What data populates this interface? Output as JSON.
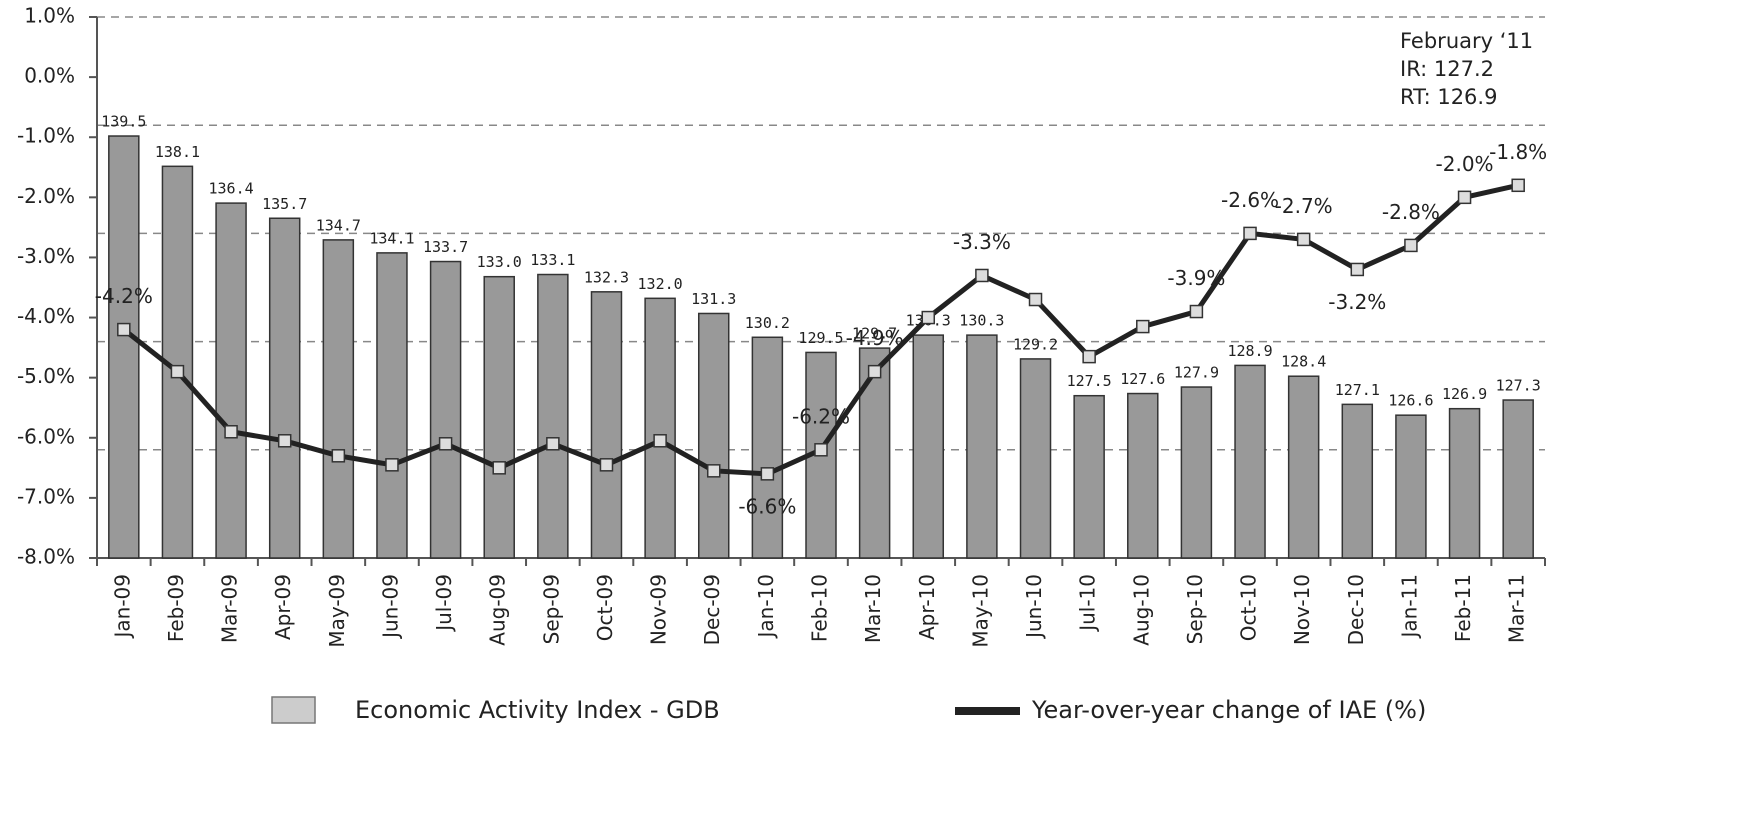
{
  "chart_data": {
    "type": "bar-line",
    "categories": [
      "Jan-09",
      "Feb-09",
      "Mar-09",
      "Apr-09",
      "May-09",
      "Jun-09",
      "Jul-09",
      "Aug-09",
      "Sep-09",
      "Oct-09",
      "Nov-09",
      "Dec-09",
      "Jan-10",
      "Feb-10",
      "Mar-10",
      "Apr-10",
      "May-10",
      "Jun-10",
      "Jul-10",
      "Aug-10",
      "Sep-10",
      "Oct-10",
      "Nov-10",
      "Dec-10",
      "Jan-11",
      "Feb-11",
      "Mar-11"
    ],
    "series": [
      {
        "name": "Economic Activity Index - GDB",
        "type": "bar",
        "axis": "y2",
        "color": "#999999",
        "legend_color": "#cccccc",
        "values": [
          139.5,
          138.1,
          136.4,
          135.7,
          134.7,
          134.1,
          133.7,
          133.0,
          133.1,
          132.3,
          132.0,
          131.3,
          130.2,
          129.5,
          129.7,
          130.3,
          130.3,
          129.2,
          127.5,
          127.6,
          127.9,
          128.9,
          128.4,
          127.1,
          126.6,
          126.9,
          127.3
        ],
        "value_labels": [
          "139.5",
          "138.1",
          "136.4",
          "135.7",
          "134.7",
          "134.1",
          "133.7",
          "133.0",
          "133.1",
          "132.3",
          "132.0",
          "131.3",
          "130.2",
          "129.5",
          "129.7",
          "130.3",
          "130.3",
          "129.2",
          "127.5",
          "127.6",
          "127.9",
          "128.9",
          "128.4",
          "127.1",
          "126.6",
          "126.9",
          "127.3"
        ]
      },
      {
        "name": "Year-over-year change of IAE (%)",
        "type": "line",
        "color": "#222222",
        "values": [
          -4.2,
          -4.9,
          -5.9,
          -6.05,
          -6.3,
          -6.45,
          -6.1,
          -6.5,
          -6.1,
          -6.45,
          -6.05,
          -6.55,
          -6.6,
          -6.2,
          -4.9,
          -4.0,
          -3.3,
          -3.7,
          -4.65,
          -4.15,
          -3.9,
          -2.6,
          -2.7,
          -3.2,
          -2.8,
          -2.0,
          -1.8
        ],
        "value_labels": [
          "-4.2%",
          null,
          null,
          null,
          null,
          null,
          null,
          null,
          null,
          null,
          null,
          null,
          "-6.6%",
          "-6.2%",
          "-4.9%",
          null,
          "-3.3%",
          null,
          null,
          null,
          "-3.9%",
          "-2.6%",
          "-2.7%",
          "-3.2%",
          "-2.8%",
          "-2.0%",
          "-1.8%"
        ]
      }
    ],
    "ylim": [
      -8,
      1
    ],
    "yticks": [
      {
        "value": -8,
        "label": "-8.0%"
      },
      {
        "value": -7,
        "label": "-7.0%"
      },
      {
        "value": -6,
        "label": "-6.0%"
      },
      {
        "value": -5,
        "label": "-5.0%"
      },
      {
        "value": -4,
        "label": "-4.0%"
      },
      {
        "value": -3,
        "label": "-3.0%"
      },
      {
        "value": -2,
        "label": "-2.0%"
      },
      {
        "value": -1,
        "label": "-1.0%"
      },
      {
        "value": 0,
        "label": "0.0%"
      },
      {
        "value": 1,
        "label": "1.0%"
      }
    ],
    "y2lim": [
      120,
      145
    ],
    "y2ticks": [
      120,
      125,
      130,
      135,
      140,
      145
    ],
    "grid": "dashed",
    "annotations": [
      "February ‘11",
      "IR: 127.2",
      "RT: 126.9"
    ]
  }
}
